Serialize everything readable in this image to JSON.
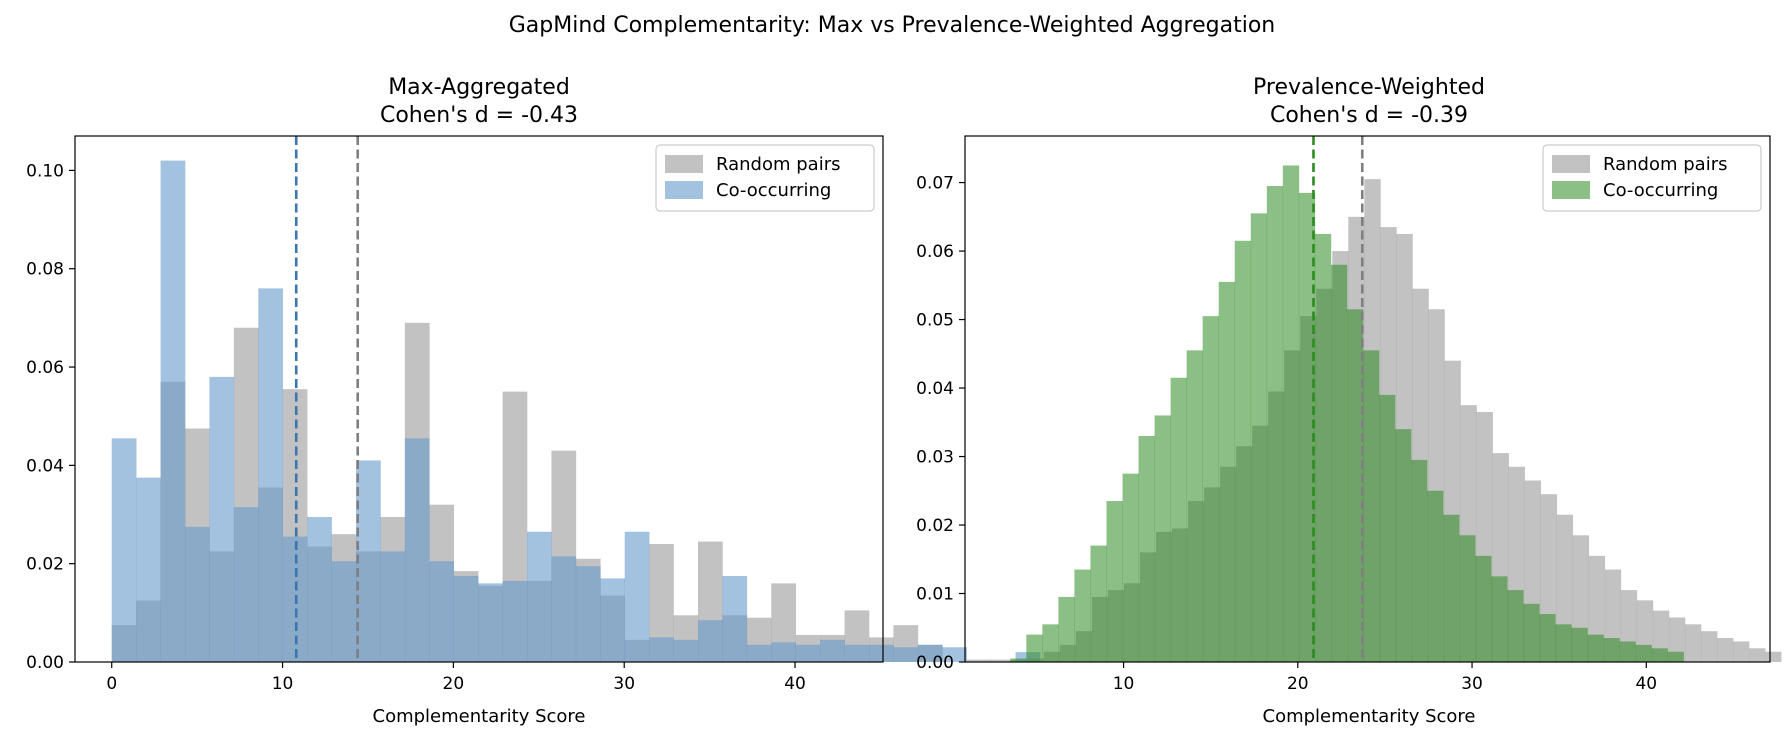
{
  "figure": {
    "suptitle": "GapMind Complementarity: Max vs Prevalence-Weighted Aggregation"
  },
  "chart_data": [
    {
      "type": "histogram",
      "title_line1": "Max-Aggregated",
      "title_line2": "Cohen's d = -0.43",
      "xlabel": "Complementarity Score",
      "ylabel": "",
      "xlim": [
        -2.15,
        45.15
      ],
      "ylim": [
        0,
        0.107
      ],
      "xticks": [
        0,
        10,
        20,
        30,
        40
      ],
      "yticks": [
        0.0,
        0.02,
        0.04,
        0.06,
        0.08,
        0.1
      ],
      "ytick_decimals": 2,
      "grid": false,
      "legend_position": "upper right",
      "series": [
        {
          "name": "Random pairs",
          "color": "#999999",
          "opacity": 0.6,
          "bin_start": 0,
          "bin_width": 1.43,
          "values": [
            0.0075,
            0.0125,
            0.057,
            0.0475,
            0.0225,
            0.068,
            0.0355,
            0.0555,
            0.0235,
            0.026,
            0.0225,
            0.0295,
            0.069,
            0.032,
            0.0185,
            0.0155,
            0.055,
            0.0165,
            0.043,
            0.021,
            0.0135,
            0.0045,
            0.024,
            0.0095,
            0.0245,
            0.0095,
            0.009,
            0.016,
            0.0055,
            0.0055,
            0.0105,
            0.005,
            0.0075,
            0.0035,
            0.0,
            0.0005,
            0.0005,
            0.0005,
            0.0,
            0.0,
            0.0,
            0.0,
            0.0
          ]
        },
        {
          "name": "Co-occurring",
          "color": "#6699cc",
          "opacity": 0.6,
          "bin_start": 0,
          "bin_width": 1.43,
          "values": [
            0.0455,
            0.0375,
            0.102,
            0.0275,
            0.058,
            0.0315,
            0.076,
            0.0255,
            0.0295,
            0.0205,
            0.041,
            0.0225,
            0.0455,
            0.0205,
            0.0175,
            0.016,
            0.0165,
            0.0265,
            0.0215,
            0.0195,
            0.017,
            0.0265,
            0.005,
            0.0045,
            0.0085,
            0.0175,
            0.0035,
            0.004,
            0.0035,
            0.0045,
            0.0035,
            0.0035,
            0.003,
            0.0035,
            0.003,
            0.0,
            0.0,
            0.002,
            0.0,
            0.0,
            0.0,
            0.0,
            0.0
          ]
        }
      ],
      "vlines": [
        {
          "x": 10.8,
          "color": "#3b76af"
        },
        {
          "x": 14.4,
          "color": "#7f7f7f"
        }
      ]
    },
    {
      "type": "histogram",
      "title_line1": "Prevalence-Weighted",
      "title_line2": "Cohen's d = -0.39",
      "xlabel": "Complementarity Score",
      "ylabel": "",
      "xlim": [
        0.9,
        47.1
      ],
      "ylim": [
        0,
        0.0768
      ],
      "xticks": [
        10,
        20,
        30,
        40
      ],
      "yticks": [
        0.0,
        0.01,
        0.02,
        0.03,
        0.04,
        0.05,
        0.06,
        0.07
      ],
      "ytick_decimals": 2,
      "grid": false,
      "legend_position": "upper right",
      "series": [
        {
          "name": "Random pairs",
          "color": "#999999",
          "opacity": 0.6,
          "bin_start": 4.5,
          "bin_width": 0.92,
          "values": [
            0.0005,
            0.0015,
            0.0025,
            0.0045,
            0.0095,
            0.0105,
            0.0115,
            0.016,
            0.019,
            0.0195,
            0.0235,
            0.0255,
            0.0285,
            0.0315,
            0.0345,
            0.0395,
            0.0455,
            0.0505,
            0.0545,
            0.06,
            0.065,
            0.0705,
            0.0635,
            0.0625,
            0.0545,
            0.0515,
            0.044,
            0.0375,
            0.0365,
            0.0305,
            0.0285,
            0.0265,
            0.0245,
            0.0215,
            0.0185,
            0.0155,
            0.0135,
            0.0105,
            0.009,
            0.0075,
            0.0065,
            0.0055,
            0.0045,
            0.0035,
            0.003,
            0.002,
            0.0015
          ]
        },
        {
          "name": "Co-occurring",
          "color": "#2e8b22",
          "opacity": 0.55,
          "bin_start": 3.5,
          "bin_width": 0.92,
          "values": [
            0.0005,
            0.004,
            0.0055,
            0.0095,
            0.0135,
            0.017,
            0.0235,
            0.0275,
            0.033,
            0.036,
            0.0415,
            0.0455,
            0.0505,
            0.0555,
            0.0615,
            0.0655,
            0.0695,
            0.0725,
            0.0685,
            0.0625,
            0.058,
            0.0515,
            0.0455,
            0.039,
            0.034,
            0.0295,
            0.025,
            0.0215,
            0.0185,
            0.0155,
            0.0125,
            0.0105,
            0.0085,
            0.007,
            0.0055,
            0.005,
            0.004,
            0.0035,
            0.003,
            0.0025,
            0.002,
            0.0015
          ]
        }
      ],
      "vlines": [
        {
          "x": 20.9,
          "color": "#2e8b22"
        },
        {
          "x": 23.7,
          "color": "#7f7f7f"
        }
      ]
    }
  ]
}
